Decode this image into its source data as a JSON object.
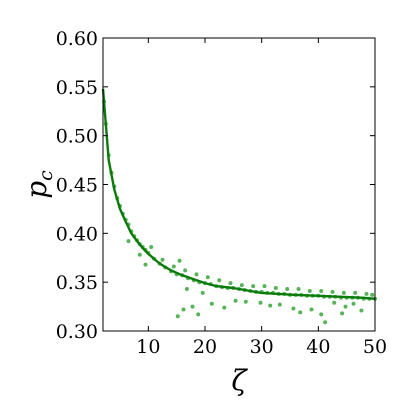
{
  "chart_data": {
    "type": "scatter",
    "title": "",
    "xlabel": "ζ",
    "ylabel_main": "p",
    "ylabel_sub": "c",
    "xlim": [
      2,
      50
    ],
    "ylim": [
      0.3,
      0.6
    ],
    "x_ticks": [
      10,
      20,
      30,
      40,
      50
    ],
    "x_tick_labels": [
      "10",
      "20",
      "30",
      "40",
      "50"
    ],
    "y_ticks": [
      0.3,
      0.35,
      0.4,
      0.45,
      0.5,
      0.55,
      0.6
    ],
    "y_tick_labels": [
      "0.30",
      "0.35",
      "0.40",
      "0.45",
      "0.50",
      "0.55",
      "0.60"
    ],
    "grid": false,
    "colors": {
      "line": "#0a7a0a",
      "points": "#3aa63a"
    },
    "series": [
      {
        "type": "line",
        "x": [
          2,
          3,
          4,
          5,
          6,
          7,
          8,
          9,
          10,
          12,
          14,
          16,
          18,
          20,
          22,
          25,
          28,
          30,
          33,
          36,
          40,
          44,
          48,
          50
        ],
        "y": [
          0.548,
          0.475,
          0.445,
          0.425,
          0.412,
          0.4,
          0.392,
          0.385,
          0.379,
          0.369,
          0.362,
          0.357,
          0.353,
          0.349,
          0.346,
          0.344,
          0.341,
          0.339,
          0.338,
          0.337,
          0.336,
          0.335,
          0.334,
          0.333
        ]
      },
      {
        "type": "scatter",
        "x": [
          2.2,
          2.5,
          3.0,
          3.5,
          4.0,
          4.5,
          5.0,
          5.5,
          6.0,
          6.5,
          7.0,
          7.5,
          8.0,
          8.5,
          9.0,
          9.5,
          10,
          11,
          12,
          13,
          14,
          15,
          16,
          17,
          18,
          19,
          20,
          21,
          22,
          23,
          24,
          25,
          26,
          27,
          28,
          29,
          30,
          31,
          32,
          33,
          34,
          35,
          36,
          37,
          38,
          39,
          40,
          41,
          42,
          43,
          44,
          45,
          46,
          47,
          48,
          49,
          50,
          6.5,
          8.5,
          9.5,
          10.5,
          12.5,
          14.5,
          15.5,
          16.5,
          18.5,
          20.5,
          22.5,
          24.5,
          26.5,
          28.5,
          30.5,
          32.5,
          34.5,
          36.5,
          38.5,
          40.5,
          42.5,
          44.5,
          46.5,
          48.5,
          49.5,
          15.2,
          16.2,
          17.8,
          18.8,
          21.2,
          23.4,
          27.2,
          31.5,
          35.6,
          38.8,
          41.2,
          44.8,
          47.6,
          36.8,
          40.5,
          44.2,
          16.8,
          19.6,
          25.4,
          29.8,
          33.2,
          42.8,
          46.2
        ],
        "y": [
          0.535,
          0.512,
          0.48,
          0.462,
          0.448,
          0.436,
          0.428,
          0.42,
          0.414,
          0.409,
          0.402,
          0.397,
          0.393,
          0.389,
          0.386,
          0.383,
          0.38,
          0.374,
          0.369,
          0.365,
          0.361,
          0.358,
          0.357,
          0.354,
          0.352,
          0.35,
          0.349,
          0.348,
          0.346,
          0.345,
          0.344,
          0.344,
          0.343,
          0.342,
          0.341,
          0.34,
          0.34,
          0.339,
          0.339,
          0.338,
          0.338,
          0.337,
          0.337,
          0.337,
          0.336,
          0.336,
          0.336,
          0.335,
          0.335,
          0.335,
          0.334,
          0.334,
          0.334,
          0.334,
          0.333,
          0.333,
          0.333,
          0.392,
          0.378,
          0.368,
          0.386,
          0.373,
          0.366,
          0.372,
          0.362,
          0.358,
          0.355,
          0.352,
          0.349,
          0.347,
          0.346,
          0.346,
          0.344,
          0.343,
          0.343,
          0.341,
          0.341,
          0.34,
          0.339,
          0.339,
          0.338,
          0.337,
          0.315,
          0.322,
          0.325,
          0.317,
          0.328,
          0.324,
          0.33,
          0.326,
          0.323,
          0.322,
          0.309,
          0.325,
          0.321,
          0.319,
          0.317,
          0.318,
          0.343,
          0.339,
          0.331,
          0.329,
          0.327,
          0.329,
          0.328
        ]
      }
    ]
  }
}
